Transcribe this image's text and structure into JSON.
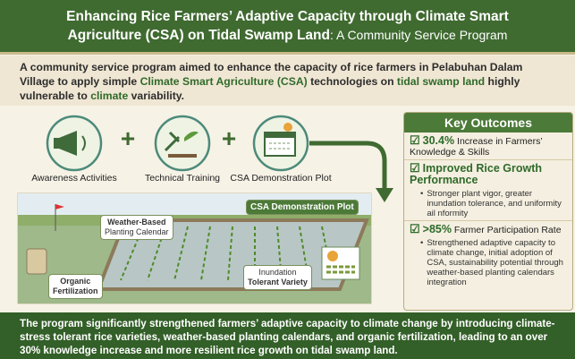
{
  "header": {
    "title": "Enhancing Rice Farmers’ Adaptive Capacity through Climate Smart Agriculture (CSA) on Tidal Swamp Land",
    "subtitle": ": A Community Service Program"
  },
  "intro": [
    "A community service program aimed to enhance the capacity of rice farmers in Pelabuhan Dalam Village to apply simple ",
    "Climate Smart Agriculture (CSA)",
    " technologies on ",
    "tidal swamp land",
    " highly vulnerable to ",
    "climate",
    " variability."
  ],
  "steps": [
    "Awareness Activities",
    "Technical Training",
    "CSA Demonstration Plot"
  ],
  "illustration": {
    "plot_label": "CSA Demonstration Plot",
    "calendar_label": [
      "Weather-Based",
      "Planting Calendar"
    ],
    "fertilizer_label": [
      "Organic",
      "Fertilization"
    ],
    "variety_label": [
      "Inundation",
      "Tolerant Variety"
    ]
  },
  "outcomes": {
    "title": "Key Outcomes",
    "items": [
      {
        "highlight": "30.4%",
        "text": " Increase in Farmers’ Knowledge & Skills"
      },
      {
        "highlight": "Improved Rice Growth Performance",
        "bullet": "Stronger plant vigor, greater inundation tolerance, and uniformity ail nformity"
      },
      {
        "highlight": ">85%",
        "text": " Farmer Participation Rate",
        "bullet": "Strengthened adaptive capacity to climate change, initial adoption of CSA, sustainability potential through weather-based planting calendars integration"
      }
    ]
  },
  "footer": "The program significantly strengthened farmers’ adaptive capacity to climate change by introducing climate-stress tolerant rice varieties, weather-based planting calendars, and organic fertilization, leading to an over 30% knowledge increase and more resilient rice growth on tidal swamp land."
}
